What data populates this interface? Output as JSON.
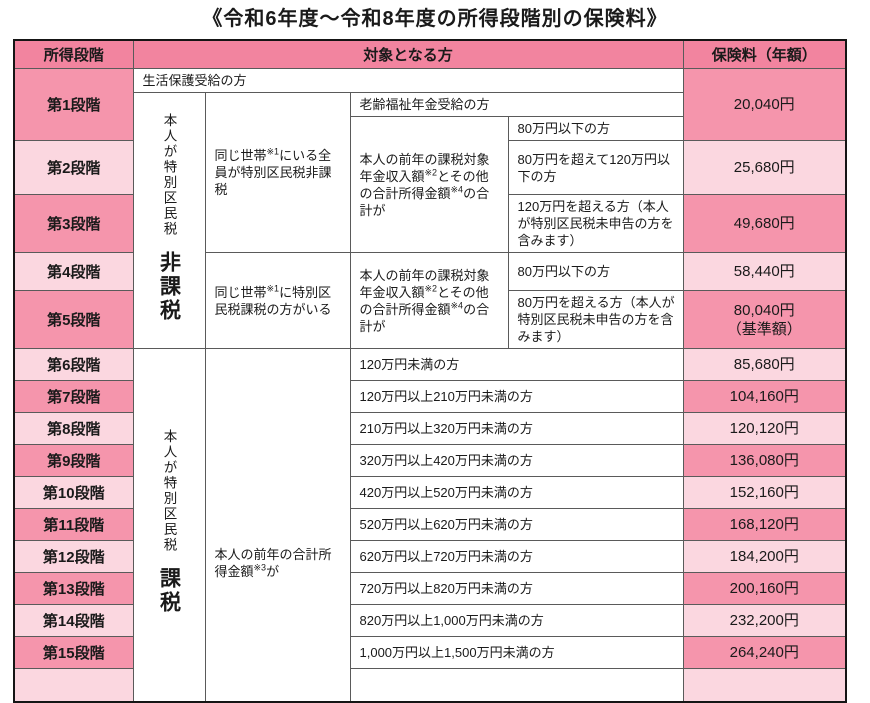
{
  "title": "《令和6年度～令和8年度の所得段階別の保険料》",
  "header": {
    "stage": "所得段階",
    "target": "対象となる方",
    "premium": "保険料（年額）"
  },
  "section1": {
    "welfare": "生活保護受給の方",
    "stage1": "第1段階",
    "stage1_premium": "20,040円",
    "nontax_vertical_pre": "本人が特別区民税",
    "nontax_vertical_main": "非課税",
    "old_age_pension": "老齢福祉年金受給の方",
    "household_all_nontax": "同じ世帯※1にいる全員が特別区民税非課税",
    "pension_sum_note": "本人の前年の課税対象年金収入額※2とその他の合計所得金額※4の合計が",
    "cond_under80": "80万円以下の方",
    "stage2": "第2段階",
    "cond_80to120": "80万円を超えて120万円以下の方",
    "stage2_premium": "25,680円",
    "stage3": "第3段階",
    "cond_over120": "120万円を超える方（本人が特別区民税未申告の方を含みます）",
    "stage3_premium": "49,680円",
    "stage4": "第4段階",
    "household_has_tax": "同じ世帯※1に特別区民税課税の方がいる",
    "pension_sum_note2": "本人の前年の課税対象年金収入額※2とその他の合計所得金額※4の合計が",
    "cond_under80_2": "80万円以下の方",
    "stage4_premium": "58,440円",
    "stage5": "第5段階",
    "cond_over80": "80万円を超える方（本人が特別区民税未申告の方を含みます）",
    "stage5_premium_line1": "80,040円",
    "stage5_premium_line2": "（基準額）"
  },
  "section2": {
    "tax_vertical_pre": "本人が特別区民税",
    "tax_vertical_main": "課税",
    "income_note": "本人の前年の合計所得金額※3が",
    "rows": [
      {
        "stage": "第6段階",
        "condition": "120万円未満の方",
        "premium": "85,680円"
      },
      {
        "stage": "第7段階",
        "condition": "120万円以上210万円未満の方",
        "premium": "104,160円"
      },
      {
        "stage": "第8段階",
        "condition": "210万円以上320万円未満の方",
        "premium": "120,120円"
      },
      {
        "stage": "第9段階",
        "condition": "320万円以上420万円未満の方",
        "premium": "136,080円"
      },
      {
        "stage": "第10段階",
        "condition": "420万円以上520万円未満の方",
        "premium": "152,160円"
      },
      {
        "stage": "第11段階",
        "condition": "520万円以上620万円未満の方",
        "premium": "168,120円"
      },
      {
        "stage": "第12段階",
        "condition": "620万円以上720万円未満の方",
        "premium": "184,200円"
      },
      {
        "stage": "第13段階",
        "condition": "720万円以上820万円未満の方",
        "premium": "200,160円"
      },
      {
        "stage": "第14段階",
        "condition": "820万円以上1,000万円未満の方",
        "premium": "232,200円"
      },
      {
        "stage": "第15段階",
        "condition": "1,000万円以上1,500万円未満の方",
        "premium": "264,240円"
      }
    ]
  },
  "colors": {
    "header_pink": "#f2849f",
    "row_pink": "#f595ac",
    "row_light": "#fbd7e0"
  }
}
